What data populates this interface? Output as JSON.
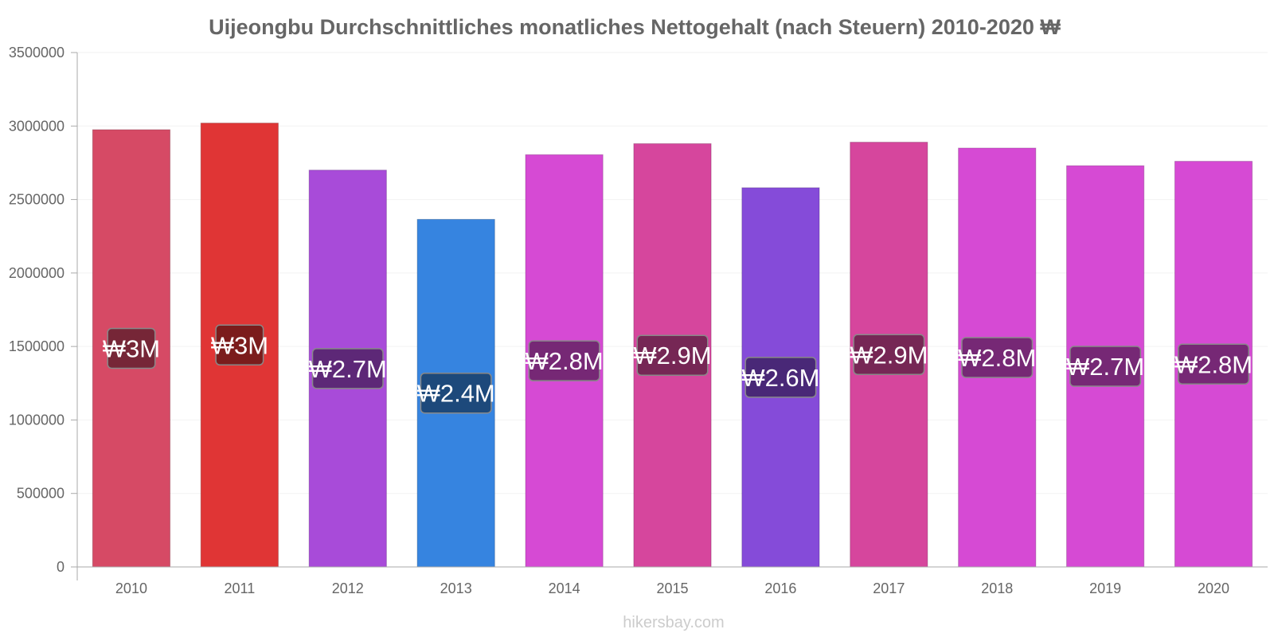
{
  "chart_data": {
    "type": "bar",
    "title": "Uijeongbu Durchschnittliches monatliches Nettogehalt (nach Steuern) 2010-2020 ₩",
    "xlabel": "",
    "ylabel": "",
    "ylim": [
      0,
      3500000
    ],
    "yticks": [
      "0",
      "500000",
      "1000000",
      "1500000",
      "2000000",
      "2500000",
      "3000000",
      "3500000"
    ],
    "categories": [
      "2010",
      "2011",
      "2012",
      "2013",
      "2014",
      "2015",
      "2016",
      "2017",
      "2018",
      "2019",
      "2020"
    ],
    "values": [
      2975000,
      3020000,
      2700000,
      2365000,
      2805000,
      2880000,
      2580000,
      2890000,
      2850000,
      2730000,
      2760000
    ],
    "data_labels": [
      "₩3M",
      "₩3M",
      "₩2.7M",
      "₩2.4M",
      "₩2.8M",
      "₩2.9M",
      "₩2.6M",
      "₩2.9M",
      "₩2.8M",
      "₩2.7M",
      "₩2.8M"
    ],
    "colors": [
      "#d64a65",
      "#e03535",
      "#a84bd9",
      "#3684e0",
      "#d64ad4",
      "#d6469d",
      "#854bd9",
      "#d6469d",
      "#d64ad4",
      "#d64ad4",
      "#d64ad4"
    ],
    "label_colors": [
      "#6b2232",
      "#701a1a",
      "#54256c",
      "#1b4270",
      "#6b256a",
      "#6b234e",
      "#42256c",
      "#6b234e",
      "#6b256a",
      "#6b256a",
      "#6b256a"
    ],
    "grid": true
  },
  "footer": "hikersbay.com"
}
